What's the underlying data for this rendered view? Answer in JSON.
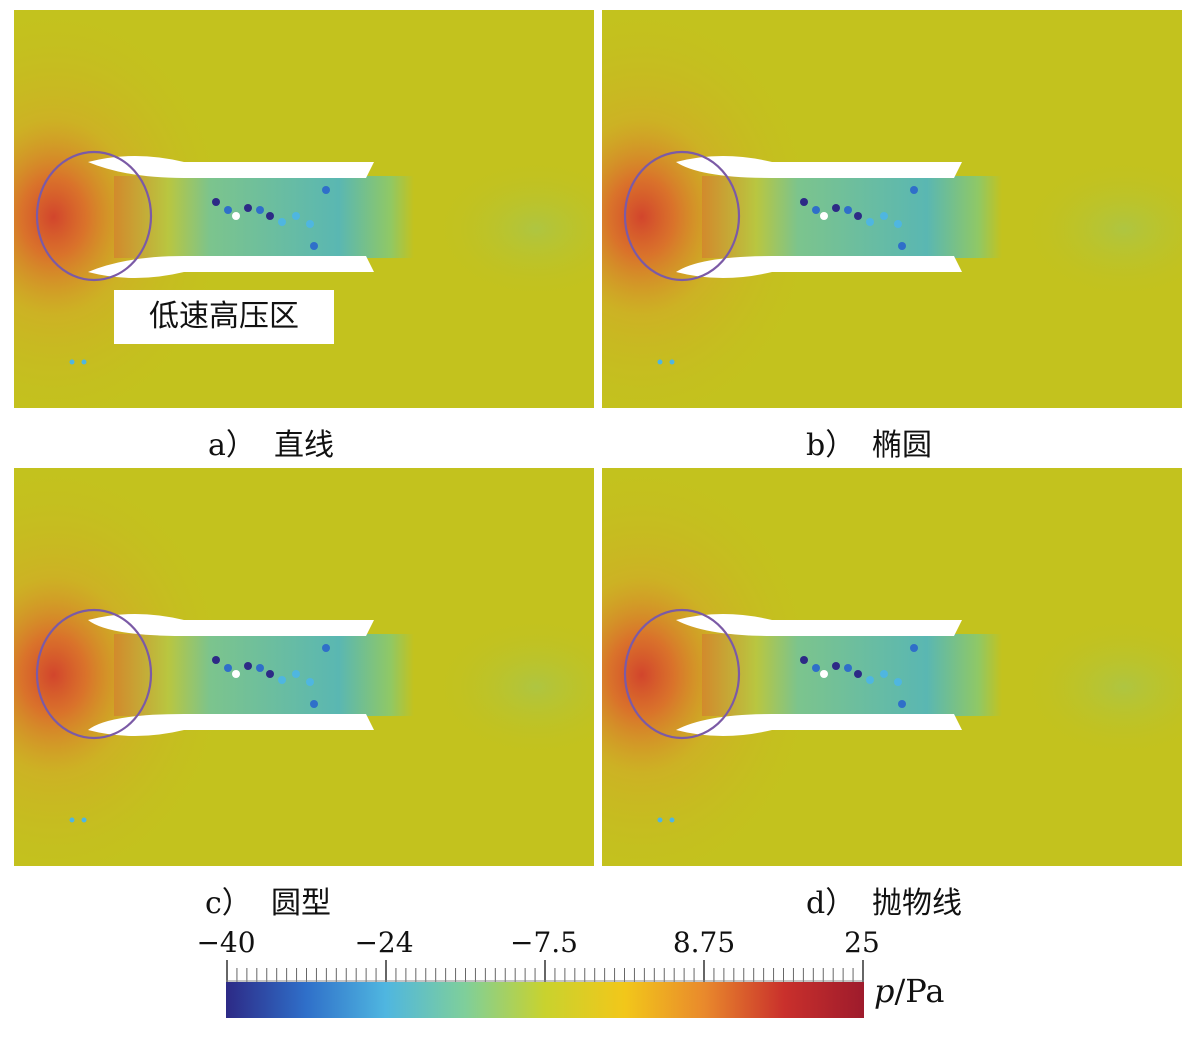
{
  "panels": [
    {
      "id": "a",
      "letter": "a）",
      "label": "直线",
      "lip": "straight"
    },
    {
      "id": "b",
      "letter": "b）",
      "label": "椭圆",
      "lip": "ellipse"
    },
    {
      "id": "c",
      "letter": "c）",
      "label": "圆型",
      "lip": "round"
    },
    {
      "id": "d",
      "letter": "d）",
      "label": "抛物线",
      "lip": "parabola"
    }
  ],
  "annotation": {
    "text": "低速高压区"
  },
  "colorbar": {
    "ticks": [
      "−40",
      "−24",
      "−7.5",
      "8.75",
      "25"
    ],
    "tick_values": [
      -40,
      -24,
      -7.5,
      8.75,
      25
    ],
    "range": [
      -40,
      25
    ],
    "variable": "p",
    "unit": "/Pa",
    "colormap": [
      "#2d2a86",
      "#2f6fc9",
      "#4fb6e0",
      "#7fcf9a",
      "#c9d22e",
      "#f2c71a",
      "#e9892c",
      "#c9302c",
      "#9e1b2c"
    ]
  },
  "colors": {
    "background_field": "#c3c21e",
    "high_pressure": "#d2452c",
    "channel": "#69c08a",
    "ellipse_outline": "#7b5aa6"
  }
}
